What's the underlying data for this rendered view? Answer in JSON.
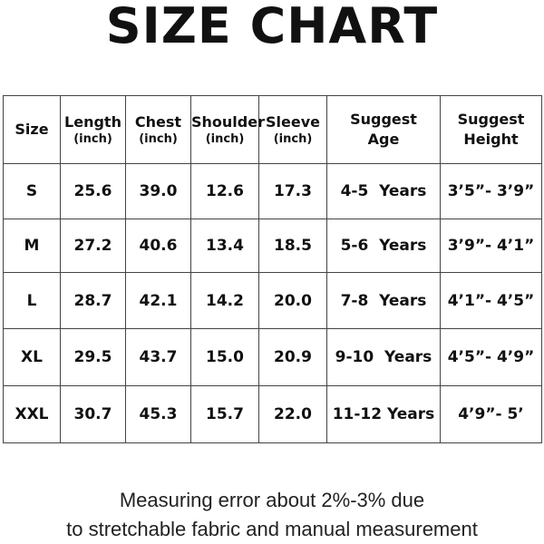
{
  "header": {
    "title": "SIZE CHART"
  },
  "table": {
    "columns": [
      {
        "lines": [
          "Size"
        ]
      },
      {
        "lines": [
          "Length"
        ],
        "unit": "(inch)"
      },
      {
        "lines": [
          "Chest"
        ],
        "unit": "(inch)"
      },
      {
        "lines": [
          "Shoulder"
        ],
        "unit": "(inch)"
      },
      {
        "lines": [
          "Sleeve"
        ],
        "unit": "(inch)"
      },
      {
        "lines": [
          "Suggest",
          "Age"
        ]
      },
      {
        "lines": [
          "Suggest",
          "Height"
        ]
      }
    ],
    "rows": [
      [
        "S",
        "25.6",
        "39.0",
        "12.6",
        "17.3",
        "4-5  Years",
        "3’5”- 3’9”"
      ],
      [
        "M",
        "27.2",
        "40.6",
        "13.4",
        "18.5",
        "5-6  Years",
        "3’9”- 4’1”"
      ],
      [
        "L",
        "28.7",
        "42.1",
        "14.2",
        "20.0",
        "7-8  Years",
        "4’1”- 4’5”"
      ],
      [
        "XL",
        "29.5",
        "43.7",
        "15.0",
        "20.9",
        "9-10  Years",
        "4’5”- 4’9”"
      ],
      [
        "XXL",
        "30.7",
        "45.3",
        "15.7",
        "22.0",
        "11-12 Years",
        "4’9”- 5’"
      ]
    ]
  },
  "footer": {
    "lines": [
      "Measuring error about 2%-3% due",
      "to stretchable fabric and manual measurement"
    ]
  }
}
